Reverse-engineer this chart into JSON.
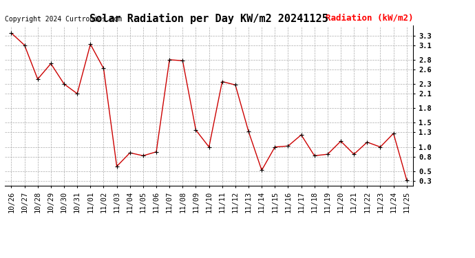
{
  "title": "Solar Radiation per Day KW/m2 20241125",
  "copyright": "Copyright 2024 Curtronics.com",
  "legend_label": "Radiation (kW/m2)",
  "dates": [
    "10/26",
    "10/27",
    "10/28",
    "10/29",
    "10/30",
    "10/31",
    "11/01",
    "11/02",
    "11/03",
    "11/04",
    "11/05",
    "11/06",
    "11/07",
    "11/08",
    "11/09",
    "11/10",
    "11/11",
    "11/12",
    "11/13",
    "11/14",
    "11/15",
    "11/16",
    "11/17",
    "11/18",
    "11/19",
    "11/20",
    "11/21",
    "11/22",
    "11/23",
    "11/24",
    "11/25"
  ],
  "values": [
    3.35,
    3.1,
    2.4,
    2.72,
    2.3,
    2.1,
    3.12,
    2.62,
    0.6,
    0.88,
    0.82,
    0.9,
    2.8,
    2.78,
    1.35,
    1.0,
    2.35,
    2.28,
    1.32,
    0.52,
    1.0,
    1.02,
    1.25,
    0.82,
    0.85,
    1.12,
    0.85,
    1.1,
    1.0,
    1.28,
    0.32
  ],
  "line_color": "#cc0000",
  "marker_color": "#000000",
  "background_color": "#ffffff",
  "grid_color": "#aaaaaa",
  "title_fontsize": 11,
  "copyright_fontsize": 7,
  "legend_fontsize": 9,
  "tick_fontsize": 7.5,
  "ylim": [
    0.2,
    3.5
  ],
  "yticks": [
    0.3,
    0.5,
    0.8,
    1.0,
    1.3,
    1.5,
    1.8,
    2.1,
    2.3,
    2.6,
    2.8,
    3.1,
    3.3
  ]
}
